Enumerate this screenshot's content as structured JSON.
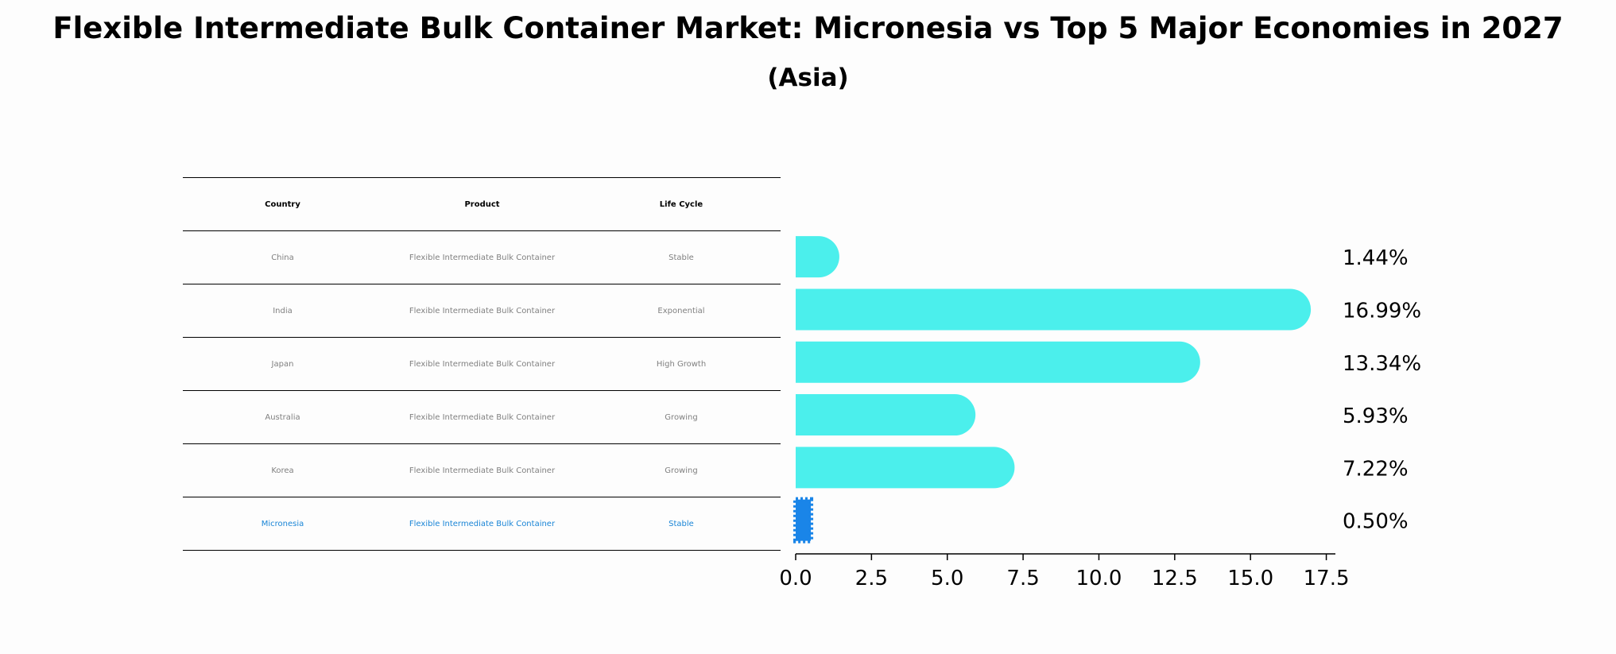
{
  "title": "Flexible Intermediate Bulk Container Market: Micronesia vs Top 5 Major Economies in 2027",
  "subtitle": "(Asia)",
  "table": {
    "headers": [
      "Country",
      "Product",
      "Life Cycle"
    ],
    "rows": [
      {
        "country": "China",
        "product": "Flexible Intermediate Bulk Container",
        "life_cycle": "Stable"
      },
      {
        "country": "India",
        "product": "Flexible Intermediate Bulk Container",
        "life_cycle": "Exponential"
      },
      {
        "country": "Japan",
        "product": "Flexible Intermediate Bulk Container",
        "life_cycle": "High Growth"
      },
      {
        "country": "Australia",
        "product": "Flexible Intermediate Bulk Container",
        "life_cycle": "Growing"
      },
      {
        "country": "Korea",
        "product": "Flexible Intermediate Bulk Container",
        "life_cycle": "Growing"
      },
      {
        "country": "Micronesia",
        "product": "Flexible Intermediate Bulk Container",
        "life_cycle": "Stable"
      }
    ]
  },
  "colors": {
    "bar": "#4befec",
    "highlight": "#1a85e8",
    "highlight_text": "#1a85d6",
    "muted_text": "#808080"
  },
  "chart_data": {
    "type": "bar",
    "orientation": "horizontal",
    "title": "Flexible Intermediate Bulk Container Market: Micronesia vs Top 5 Major Economies in 2027",
    "subtitle": "(Asia)",
    "categories": [
      "China",
      "India",
      "Japan",
      "Australia",
      "Korea",
      "Micronesia"
    ],
    "values": [
      1.44,
      16.99,
      13.34,
      5.93,
      7.22,
      0.5
    ],
    "labels": [
      "1.44%",
      "16.99%",
      "13.34%",
      "5.93%",
      "7.22%",
      "0.50%"
    ],
    "highlight": "Micronesia",
    "xlim": [
      0,
      17.8
    ],
    "xticks": [
      0.0,
      2.5,
      5.0,
      7.5,
      10.0,
      12.5,
      15.0,
      17.5
    ],
    "xtick_labels": [
      "0.0",
      "2.5",
      "5.0",
      "7.5",
      "10.0",
      "12.5",
      "15.0",
      "17.5"
    ],
    "xlabel": "",
    "ylabel": "",
    "grid": false
  }
}
